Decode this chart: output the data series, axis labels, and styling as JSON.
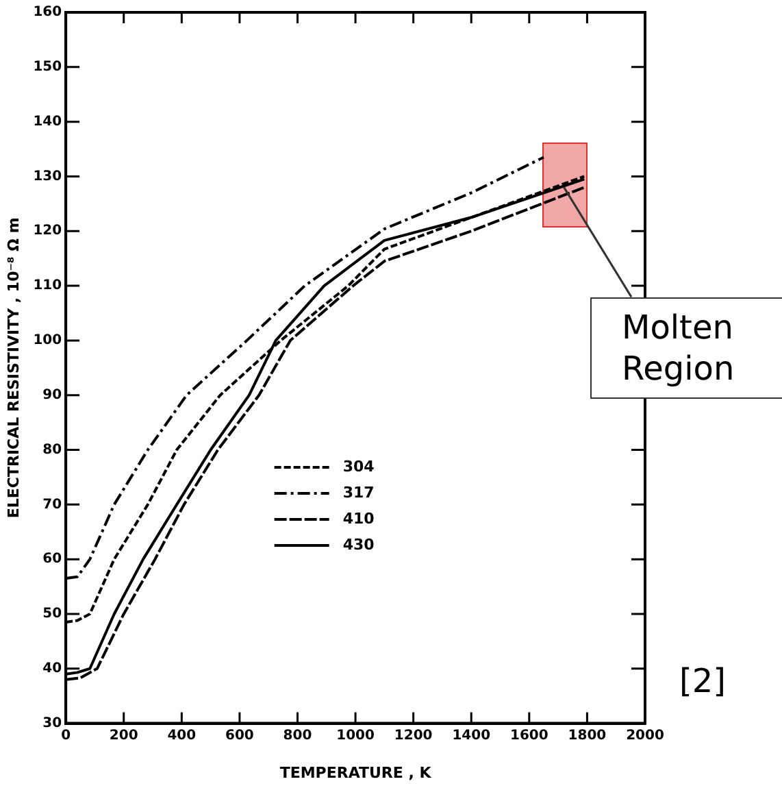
{
  "chart_data": {
    "type": "line",
    "xlabel": "TEMPERATURE , K",
    "ylabel": "ELECTRICAL RESISTIVITY , 10⁻⁸ Ω m",
    "xlim": [
      0,
      2000
    ],
    "xticks": [
      0,
      200,
      400,
      600,
      800,
      1000,
      1200,
      1400,
      1600,
      1800,
      2000
    ],
    "ylim": [
      30,
      160
    ],
    "yticks": [
      30,
      40,
      50,
      60,
      70,
      80,
      90,
      100,
      110,
      120,
      130,
      140,
      150,
      160
    ],
    "grid": false,
    "legend": "center",
    "marker": "none",
    "series": [
      {
        "name": "304",
        "color": "#000000",
        "line_style": "dashed",
        "x": [
          0,
          40,
          83,
          167,
          283,
          383,
          533,
          742,
          975,
          1100,
          1400,
          1790
        ],
        "values": [
          48.5,
          48.8,
          50,
          60,
          70,
          80,
          90,
          100,
          110,
          116.7,
          122.5,
          130
        ]
      },
      {
        "name": "317",
        "color": "#000000",
        "line_style": "dashdot",
        "x": [
          0,
          40,
          83,
          167,
          283,
          417,
          625,
          825,
          1100,
          1400,
          1650
        ],
        "values": [
          56.5,
          56.8,
          60,
          70,
          80,
          90,
          100,
          110,
          120.4,
          127,
          133.5
        ]
      },
      {
        "name": "410",
        "color": "#000000",
        "line_style": "longdash",
        "x": [
          0,
          50,
          108,
          200,
          308,
          408,
          525,
          667,
          775,
          992,
          1100,
          1400,
          1790
        ],
        "values": [
          38,
          38.3,
          40,
          50,
          60,
          70,
          80,
          90,
          100,
          110,
          114.5,
          120,
          128
        ]
      },
      {
        "name": "430",
        "color": "#000000",
        "line_style": "solid",
        "x": [
          0,
          40,
          83,
          167,
          267,
          383,
          500,
          633,
          725,
          892,
          1100,
          1400,
          1790
        ],
        "values": [
          39,
          39.3,
          40,
          50,
          60,
          70,
          80,
          90,
          100,
          110,
          118.3,
          122.5,
          129.5
        ]
      }
    ],
    "annotations": [
      {
        "text": "Molten Region",
        "x": 1720,
        "y": 128
      },
      "[2]"
    ]
  }
}
